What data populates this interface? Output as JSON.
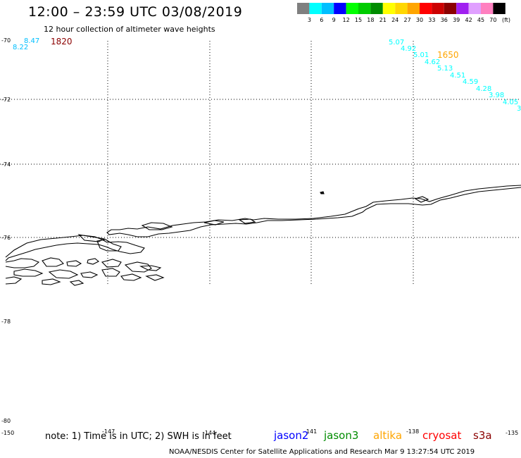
{
  "header": {
    "title": "12:00 – 23:59 UTC 03/08/2019",
    "subtitle": "12 hour collection of altimeter wave heights"
  },
  "legend": {
    "colors": [
      "#7f7f7f",
      "#00ffff",
      "#00bfff",
      "#0000ff",
      "#00ff00",
      "#00cc00",
      "#008c00",
      "#ffff00",
      "#ffd700",
      "#ffa500",
      "#ff0000",
      "#cc0000",
      "#8b0000",
      "#a020f0",
      "#e0a0ff",
      "#ff80c0",
      "#000000"
    ],
    "labels": [
      "3",
      "6",
      "9",
      "12",
      "15",
      "18",
      "21",
      "24",
      "27",
      "30",
      "33",
      "36",
      "39",
      "42",
      "45",
      "70"
    ],
    "unit": "(ft)"
  },
  "axes": {
    "lat_labels": [
      "-70",
      "-72",
      "-74",
      "-76",
      "-78",
      "-80"
    ],
    "lon_labels": [
      "-150",
      "-147",
      "-144",
      "-141",
      "-138",
      "-135"
    ]
  },
  "times": [
    {
      "text": "1820",
      "color": "#8b0000"
    },
    {
      "text": "1650",
      "color": "#ffa500"
    }
  ],
  "wave_heights": [
    {
      "text": "8.47",
      "color": "#00bfff"
    },
    {
      "text": "8.22",
      "color": "#00bfff"
    },
    {
      "text": "5.07",
      "color": "#00ffff"
    },
    {
      "text": "4.92",
      "color": "#00ffff"
    },
    {
      "text": "5.01",
      "color": "#00ffff"
    },
    {
      "text": "4.62",
      "color": "#00ffff"
    },
    {
      "text": "5.13",
      "color": "#00ffff"
    },
    {
      "text": "4.51",
      "color": "#00ffff"
    },
    {
      "text": "4.59",
      "color": "#00ffff"
    },
    {
      "text": "4.28",
      "color": "#00ffff"
    },
    {
      "text": "3.98",
      "color": "#00ffff"
    },
    {
      "text": "4.05",
      "color": "#00ffff"
    },
    {
      "text": "3",
      "color": "#00ffff"
    }
  ],
  "footer": {
    "note": "note: 1) Time is in UTC; 2) SWH is in feet",
    "satellites": [
      {
        "name": "jason2",
        "color": "#0000ff"
      },
      {
        "name": "jason3",
        "color": "#008c00"
      },
      {
        "name": "altika",
        "color": "#ffa500"
      },
      {
        "name": "cryosat",
        "color": "#ff0000"
      },
      {
        "name": "s3a",
        "color": "#8b0000"
      }
    ],
    "credit": "NOAA/NESDIS Center for Satellite Applications and Research    Mar  9 13:27:54 UTC 2019"
  }
}
